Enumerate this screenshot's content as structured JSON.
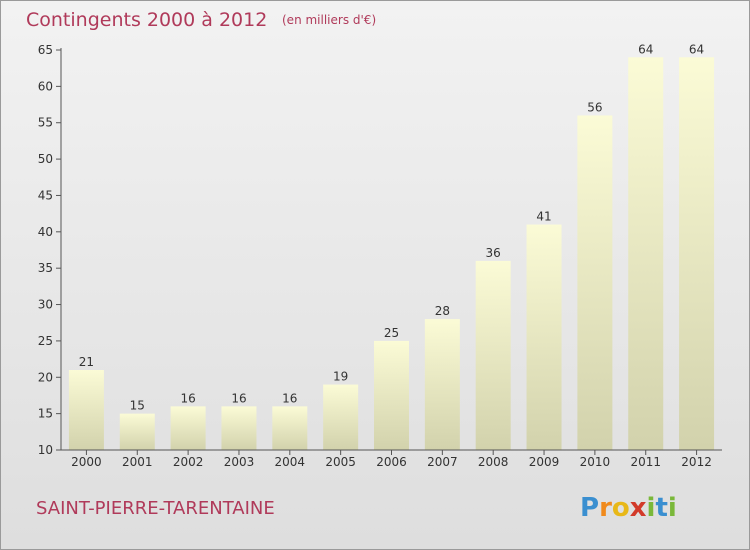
{
  "chart_data": {
    "type": "bar",
    "title": "Contingents 2000 à 2012",
    "subtitle": "(en milliers d'€)",
    "categories": [
      "2000",
      "2001",
      "2002",
      "2003",
      "2004",
      "2005",
      "2006",
      "2007",
      "2008",
      "2009",
      "2010",
      "2011",
      "2012"
    ],
    "values": [
      21,
      15,
      16,
      16,
      16,
      19,
      25,
      28,
      36,
      41,
      56,
      64,
      64
    ],
    "y_ticks": [
      10,
      15,
      20,
      25,
      30,
      35,
      40,
      45,
      50,
      55,
      60,
      65
    ],
    "ylim": [
      10,
      65
    ],
    "grid": false
  },
  "footer": {
    "place": "SAINT-PIERRE-TARENTAINE"
  },
  "logo": {
    "letters": [
      "P",
      "r",
      "o",
      "x",
      "i",
      "t",
      "i"
    ],
    "text": "Proxiti"
  },
  "colors": {
    "title": "#b03a5a",
    "bar_top": "#fbfbd6",
    "bar_bottom": "#d2d2ac",
    "background": "#e8e8e8"
  }
}
